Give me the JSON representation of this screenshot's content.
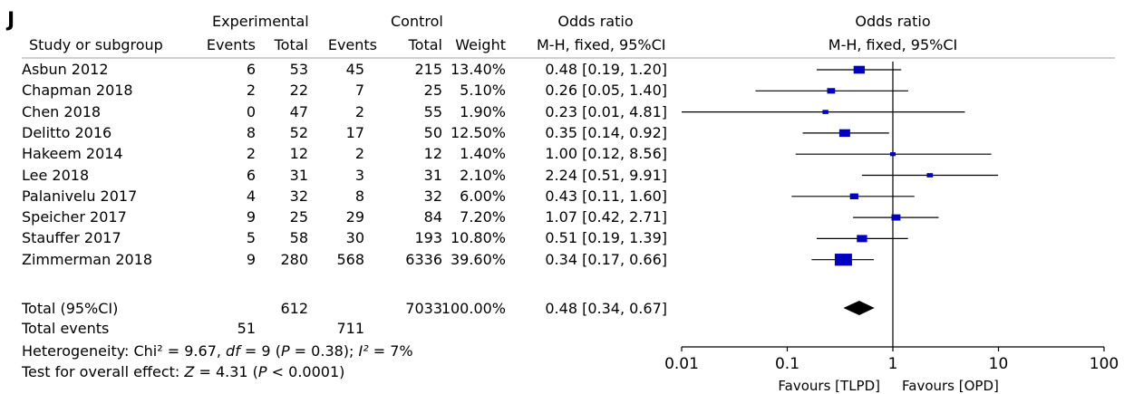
{
  "panel_label": "J",
  "header": {
    "experimental": "Experimental",
    "control": "Control",
    "or_left": "Odds ratio",
    "or_right": "Odds ratio",
    "study_col": "Study or subgroup",
    "exp_events": "Events",
    "exp_total": "Total",
    "ctl_events": "Events",
    "ctl_total": "Total",
    "weight": "Weight",
    "method_left": "M-H, fixed, 95%CI",
    "method_right": "M-H, fixed, 95%CI"
  },
  "total": {
    "label": "Total (95%CI)",
    "exp_total": "612",
    "ctl_total": "7033",
    "weight": "100.00%",
    "or_text": "0.48 [0.34, 0.67]",
    "events_label": "Total events",
    "exp_events": "51",
    "ctl_events": "711"
  },
  "heterogeneity": {
    "prefix": "Heterogeneity: Chi² = 9.67, ",
    "df_label": "df",
    "df_value": " = 9 (",
    "p_label": "P",
    "p_value": " = 0.38); ",
    "i2_label": "I²",
    "i2_value": " = 7%"
  },
  "overall_effect": {
    "prefix": "Test for overall effect: ",
    "z_label": "Z",
    "z_value": " = 4.31 (",
    "p_label": "P",
    "p_value": " < 0.0001)"
  },
  "chart_data": {
    "type": "forest",
    "x_scale": "log",
    "xlim": [
      0.01,
      100
    ],
    "x_ticks": [
      0.01,
      0.1,
      1,
      10,
      100
    ],
    "x_tick_labels": [
      "0.01",
      "0.1",
      "1",
      "10",
      "100"
    ],
    "favours_left": "Favours [TLPD]",
    "favours_right": "Favours [OPD]",
    "marker_color": "#0000c0",
    "diamond_color": "#000000",
    "studies": [
      {
        "name": "Asbun 2012",
        "exp_events": "6",
        "exp_total": "53",
        "ctl_events": "45",
        "ctl_total": "215",
        "weight": "13.40%",
        "weight_pct": 13.4,
        "or": 0.48,
        "lo": 0.19,
        "hi": 1.2,
        "or_text": "0.48 [0.19, 1.20]"
      },
      {
        "name": "Chapman 2018",
        "exp_events": "2",
        "exp_total": "22",
        "ctl_events": "7",
        "ctl_total": "25",
        "weight": "5.10%",
        "weight_pct": 5.1,
        "or": 0.26,
        "lo": 0.05,
        "hi": 1.4,
        "or_text": "0.26 [0.05, 1.40]"
      },
      {
        "name": "Chen 2018",
        "exp_events": "0",
        "exp_total": "47",
        "ctl_events": "2",
        "ctl_total": "55",
        "weight": "1.90%",
        "weight_pct": 1.9,
        "or": 0.23,
        "lo": 0.01,
        "hi": 4.81,
        "or_text": "0.23 [0.01, 4.81]"
      },
      {
        "name": "Delitto 2016",
        "exp_events": "8",
        "exp_total": "52",
        "ctl_events": "17",
        "ctl_total": "50",
        "weight": "12.50%",
        "weight_pct": 12.5,
        "or": 0.35,
        "lo": 0.14,
        "hi": 0.92,
        "or_text": "0.35 [0.14, 0.92]"
      },
      {
        "name": "Hakeem 2014",
        "exp_events": "2",
        "exp_total": "12",
        "ctl_events": "2",
        "ctl_total": "12",
        "weight": "1.40%",
        "weight_pct": 1.4,
        "or": 1.0,
        "lo": 0.12,
        "hi": 8.56,
        "or_text": "1.00 [0.12, 8.56]"
      },
      {
        "name": "Lee 2018",
        "exp_events": "6",
        "exp_total": "31",
        "ctl_events": "3",
        "ctl_total": "31",
        "weight": "2.10%",
        "weight_pct": 2.1,
        "or": 2.24,
        "lo": 0.51,
        "hi": 9.91,
        "or_text": "2.24 [0.51, 9.91]"
      },
      {
        "name": "Palanivelu 2017",
        "exp_events": "4",
        "exp_total": "32",
        "ctl_events": "8",
        "ctl_total": "32",
        "weight": "6.00%",
        "weight_pct": 6.0,
        "or": 0.43,
        "lo": 0.11,
        "hi": 1.6,
        "or_text": "0.43 [0.11, 1.60]"
      },
      {
        "name": "Speicher 2017",
        "exp_events": "9",
        "exp_total": "25",
        "ctl_events": "29",
        "ctl_total": "84",
        "weight": "7.20%",
        "weight_pct": 7.2,
        "or": 1.07,
        "lo": 0.42,
        "hi": 2.71,
        "or_text": "1.07 [0.42, 2.71]"
      },
      {
        "name": "Stauffer 2017",
        "exp_events": "5",
        "exp_total": "58",
        "ctl_events": "30",
        "ctl_total": "193",
        "weight": "10.80%",
        "weight_pct": 10.8,
        "or": 0.51,
        "lo": 0.19,
        "hi": 1.39,
        "or_text": "0.51 [0.19, 1.39]"
      },
      {
        "name": "Zimmerman 2018",
        "exp_events": "9",
        "exp_total": "280",
        "ctl_events": "568",
        "ctl_total": "6336",
        "weight": "39.60%",
        "weight_pct": 39.6,
        "or": 0.34,
        "lo": 0.17,
        "hi": 0.66,
        "or_text": "0.34 [0.17, 0.66]"
      }
    ],
    "pooled": {
      "or": 0.48,
      "lo": 0.34,
      "hi": 0.67
    }
  }
}
